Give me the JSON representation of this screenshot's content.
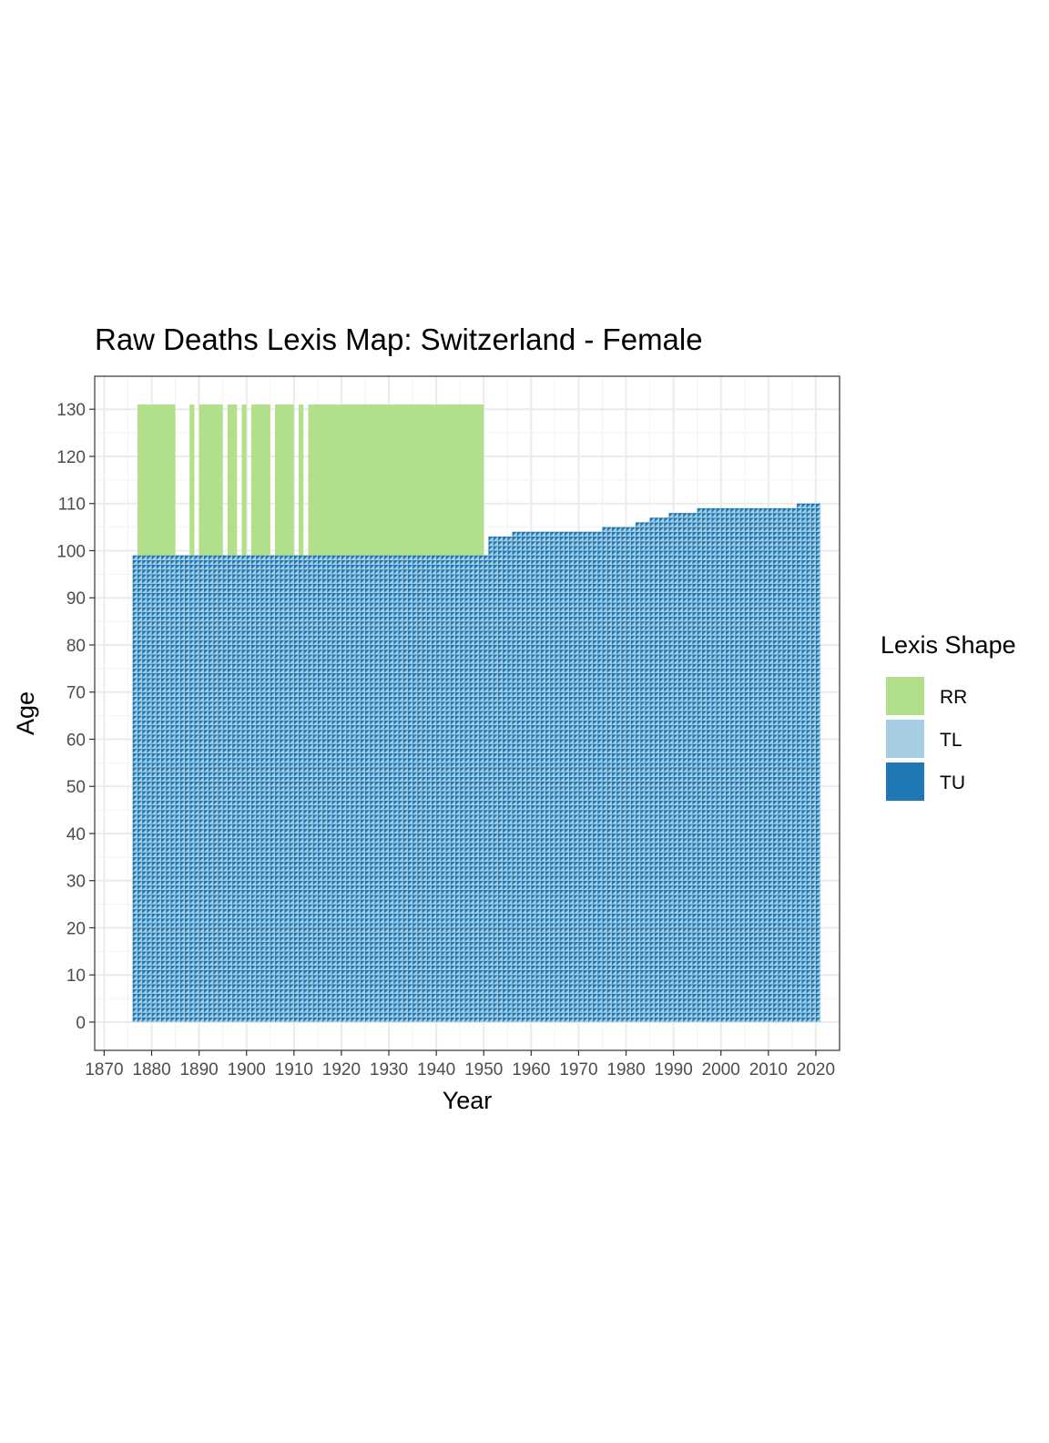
{
  "chart_data": {
    "type": "heatmap",
    "title": "Raw Deaths Lexis Map: Switzerland - Female",
    "xlabel": "Year",
    "ylabel": "Age",
    "xlim": [
      1868,
      2025
    ],
    "ylim": [
      -6,
      137
    ],
    "x_ticks": [
      1870,
      1880,
      1890,
      1900,
      1910,
      1920,
      1930,
      1940,
      1950,
      1960,
      1970,
      1980,
      1990,
      2000,
      2010,
      2020
    ],
    "y_ticks": [
      0,
      10,
      20,
      30,
      40,
      50,
      60,
      70,
      80,
      90,
      100,
      110,
      120,
      130
    ],
    "grid": true,
    "legend": {
      "title": "Lexis Shape",
      "placement": "right",
      "items": [
        {
          "label": "RR",
          "color": "#b2df8a"
        },
        {
          "label": "TL",
          "color": "#a6cee3"
        },
        {
          "label": "TU",
          "color": "#1f78b4"
        }
      ]
    },
    "triangle_region": {
      "year_start": 1876,
      "year_end": 2021,
      "age_start": 0,
      "upper_age_by_year": [
        {
          "year": 1876,
          "age": 99
        },
        {
          "year": 1950,
          "age": 99
        },
        {
          "year": 1951,
          "age": 103
        },
        {
          "year": 1960,
          "age": 104
        },
        {
          "year": 1970,
          "age": 104
        },
        {
          "year": 1980,
          "age": 105
        },
        {
          "year": 1990,
          "age": 108
        },
        {
          "year": 2000,
          "age": 109
        },
        {
          "year": 2010,
          "age": 109
        },
        {
          "year": 2021,
          "age": 110
        }
      ]
    },
    "rr_blocks": {
      "shape": "RR",
      "age_min": 99,
      "age_max": 131,
      "years_present": [
        [
          1877,
          1885
        ],
        [
          1888,
          1889
        ],
        [
          1890,
          1895
        ],
        [
          1896,
          1898
        ],
        [
          1899,
          1900
        ],
        [
          1901,
          1905
        ],
        [
          1906,
          1910
        ],
        [
          1911,
          1912
        ],
        [
          1913,
          1950
        ]
      ]
    }
  }
}
